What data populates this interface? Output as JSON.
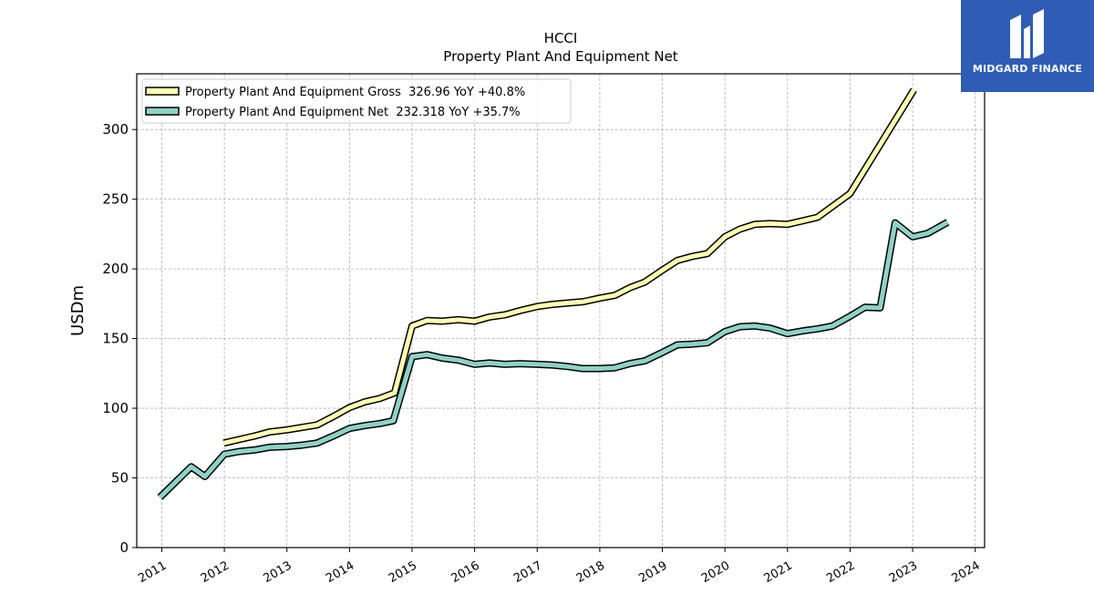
{
  "chart_data": {
    "type": "line",
    "title": "HCCI",
    "subtitle": "Property Plant And Equipment Net",
    "ylabel": "USDm",
    "xlabel": "",
    "ylim": [
      0,
      340
    ],
    "xlim": [
      2010.6,
      2024.15
    ],
    "yticks": [
      0,
      50,
      100,
      150,
      200,
      250,
      300
    ],
    "xticks": [
      2011,
      2012,
      2013,
      2014,
      2015,
      2016,
      2017,
      2018,
      2019,
      2020,
      2021,
      2022,
      2023,
      2024
    ],
    "grid": true,
    "legend_position": "top-left",
    "series": [
      {
        "name": "Property Plant And Equipment Gross  326.96 YoY +40.8%",
        "color": "#ffffb3",
        "x": [
          2011.99,
          2012.23,
          2012.48,
          2012.72,
          2013.0,
          2013.48,
          2013.74,
          2014.0,
          2014.24,
          2014.48,
          2014.72,
          2015.0,
          2015.24,
          2015.48,
          2015.74,
          2016.0,
          2016.24,
          2016.48,
          2016.72,
          2017.0,
          2017.24,
          2017.48,
          2017.74,
          2018.0,
          2018.24,
          2018.48,
          2018.72,
          2019.0,
          2019.24,
          2019.48,
          2019.72,
          2020.0,
          2020.24,
          2020.48,
          2020.72,
          2021.0,
          2021.24,
          2021.48,
          2022.0,
          2023.02
        ],
        "y": [
          75,
          77.5,
          80,
          83,
          84.5,
          88,
          94,
          100.5,
          104.5,
          107,
          111,
          159,
          163,
          162.5,
          163.5,
          162.5,
          165.5,
          167,
          170,
          173,
          174.5,
          175.5,
          176.5,
          179,
          181,
          186.5,
          190.5,
          199,
          206,
          209,
          211,
          223,
          228.5,
          232,
          232.5,
          232,
          234.5,
          237,
          254,
          328.5
        ]
      },
      {
        "name": "Property Plant And Equipment Net  232.318 YoY +35.7%",
        "color": "#8dd3c7",
        "x": [
          2010.97,
          2011.47,
          2011.69,
          2012.0,
          2012.24,
          2012.48,
          2012.72,
          2013.0,
          2013.24,
          2013.48,
          2013.74,
          2014.0,
          2014.24,
          2014.48,
          2014.7,
          2015.0,
          2015.24,
          2015.48,
          2015.74,
          2016.0,
          2016.24,
          2016.48,
          2016.72,
          2017.0,
          2017.24,
          2017.48,
          2017.72,
          2018.0,
          2018.24,
          2018.48,
          2018.72,
          2019.0,
          2019.24,
          2019.48,
          2019.72,
          2020.0,
          2020.24,
          2020.48,
          2020.72,
          2021.0,
          2021.24,
          2021.48,
          2021.72,
          2022.0,
          2022.24,
          2022.48,
          2022.72,
          2023.0,
          2023.24,
          2023.56
        ],
        "y": [
          36,
          58,
          51,
          67,
          69,
          70,
          72,
          72.5,
          73.5,
          75,
          80,
          85.5,
          87.5,
          89,
          91,
          137,
          138.5,
          136,
          134.5,
          131.5,
          132.5,
          131.5,
          132,
          131.5,
          131,
          130,
          128.5,
          128.5,
          129,
          132,
          134,
          140,
          145.5,
          146,
          147,
          155,
          158.5,
          159,
          157.5,
          153.5,
          155.5,
          157,
          159,
          166,
          172.5,
          172,
          233,
          223,
          225.5,
          233.5
        ]
      }
    ]
  }
}
